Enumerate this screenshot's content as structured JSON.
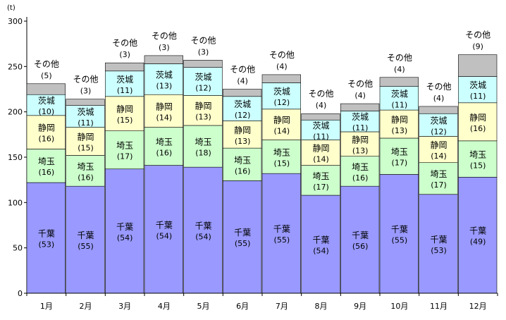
{
  "chart_data": {
    "type": "bar",
    "stacked": true,
    "unit_label": "(t)",
    "title": "",
    "xlabel": "",
    "ylabel": "",
    "ylim": [
      0,
      300
    ],
    "yticks": [
      0,
      50,
      100,
      150,
      200,
      250,
      300
    ],
    "grid": false,
    "legend": "none",
    "categories": [
      "1月",
      "2月",
      "3月",
      "4月",
      "5月",
      "6月",
      "7月",
      "8月",
      "9月",
      "10月",
      "11月",
      "12月"
    ],
    "series": [
      {
        "name": "千葉",
        "color": "#9999ff",
        "values": [
          122,
          118,
          137,
          141,
          139,
          124,
          132,
          108,
          118,
          131,
          109,
          128
        ],
        "shares": [
          "(53)",
          "(55)",
          "(54)",
          "(54)",
          "(54)",
          "(55)",
          "(55)",
          "(54)",
          "(56)",
          "(55)",
          "(53)",
          "(49)"
        ]
      },
      {
        "name": "埼玉",
        "color": "#ccffcc",
        "values": [
          37,
          34,
          42,
          42,
          46,
          36,
          37,
          33,
          33,
          40,
          35,
          40
        ],
        "shares": [
          "(16)",
          "(16)",
          "(17)",
          "(16)",
          "(18)",
          "(16)",
          "(15)",
          "(17)",
          "(16)",
          "(17)",
          "(17)",
          "(15)"
        ]
      },
      {
        "name": "静岡",
        "color": "#ffffcc",
        "values": [
          37,
          31,
          38,
          36,
          33,
          30,
          34,
          28,
          27,
          31,
          29,
          42
        ],
        "shares": [
          "(16)",
          "(15)",
          "(15)",
          "(14)",
          "(13)",
          "(13)",
          "(14)",
          "(14)",
          "(13)",
          "(13)",
          "(14)",
          "(16)"
        ]
      },
      {
        "name": "茨城",
        "color": "#ccffff",
        "values": [
          23,
          24,
          28,
          34,
          31,
          27,
          29,
          22,
          23,
          26,
          25,
          29
        ],
        "shares": [
          "(10)",
          "(11)",
          "(11)",
          "(13)",
          "(12)",
          "(12)",
          "(12)",
          "(11)",
          "(11)",
          "(11)",
          "(12)",
          "(11)"
        ]
      },
      {
        "name": "その他",
        "color": "#c0c0c0",
        "values": [
          12,
          7,
          9,
          9,
          8,
          8,
          9,
          7,
          8,
          10,
          8,
          24
        ],
        "shares": [
          "(5)",
          "(3)",
          "(3)",
          "(3)",
          "(3)",
          "(4)",
          "(4)",
          "(4)",
          "(4)",
          "(4)",
          "(4)",
          "(9)"
        ]
      }
    ]
  }
}
